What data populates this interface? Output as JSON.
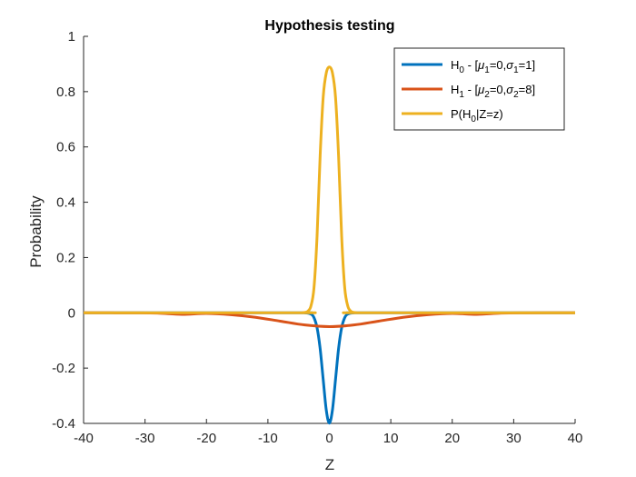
{
  "chart_data": {
    "type": "line",
    "title": "Hypothesis testing",
    "xlabel": "Z",
    "ylabel": "Probability",
    "xlim": [
      -40,
      40
    ],
    "ylim": [
      -0.4,
      1
    ],
    "xticks": [
      -40,
      -30,
      -20,
      -10,
      0,
      10,
      20,
      30,
      40
    ],
    "yticks": [
      -0.4,
      -0.2,
      0,
      0.2,
      0.4,
      0.6,
      0.8,
      1
    ],
    "ytick_labels": [
      "-0.4",
      "-0.2",
      "0",
      "0.2",
      "0.4",
      "0.6",
      "0.8",
      "1"
    ],
    "grid": false,
    "legend_position": "top-right",
    "series": [
      {
        "name": "H0 - [μ1=0,σ1=1]",
        "color": "#0072BD",
        "x": [
          -40,
          -6,
          -4,
          -3,
          -2.5,
          -2,
          -1.5,
          -1,
          -0.5,
          0,
          0.5,
          1,
          1.5,
          2,
          2.5,
          3,
          4,
          6,
          40
        ],
        "y": [
          0,
          0,
          -0.0001,
          -0.0044,
          -0.0175,
          -0.054,
          -0.1295,
          -0.242,
          -0.352,
          -0.399,
          -0.352,
          -0.242,
          -0.1295,
          -0.054,
          -0.0175,
          -0.0044,
          -0.0001,
          0,
          0
        ]
      },
      {
        "name": "H1 - [μ2=0,σ2=8]",
        "color": "#D95319",
        "x": [
          -40,
          -32,
          -28,
          -24,
          -20,
          -16,
          -12,
          -8,
          -4,
          0,
          4,
          8,
          12,
          16,
          20,
          24,
          28,
          32,
          40
        ],
        "y": [
          0,
          -0.0002,
          -0.0011,
          -0.0055,
          -0.0022,
          -0.0068,
          -0.0162,
          -0.0302,
          -0.044,
          -0.0499,
          -0.044,
          -0.0302,
          -0.0162,
          -0.0068,
          -0.0022,
          -0.0055,
          -0.0011,
          -0.0002,
          0
        ]
      },
      {
        "name": "P(H0|Z=z)",
        "color": "#EDB120",
        "x": [
          -40,
          -5,
          -4.5,
          -4,
          -3.5,
          -3,
          -2.5,
          -2,
          -1.5,
          -1,
          -0.5,
          0,
          0.5,
          1,
          1.5,
          2,
          2.5,
          3,
          3.5,
          4,
          4.5,
          5,
          40
        ],
        "y": [
          0,
          0,
          0.0003,
          0.0013,
          0.0058,
          0.0244,
          0.091,
          0.277,
          0.568,
          0.781,
          0.868,
          0.889,
          0.868,
          0.781,
          0.568,
          0.277,
          0.091,
          0.0244,
          0.0058,
          0.0013,
          0.0003,
          0,
          0
        ]
      }
    ]
  },
  "legend": [
    {
      "main": "H",
      "sub": "0",
      "rest_parts": [
        " - [",
        "μ",
        "1",
        "=0,",
        "σ",
        "1",
        "=1]"
      ]
    },
    {
      "main": "H",
      "sub": "1",
      "rest_parts": [
        " - [",
        "μ",
        "2",
        "=0,",
        "σ",
        "2",
        "=8]"
      ]
    },
    {
      "main": "P(H",
      "sub": "0",
      "rest_parts": [
        "|Z=z)"
      ]
    }
  ]
}
